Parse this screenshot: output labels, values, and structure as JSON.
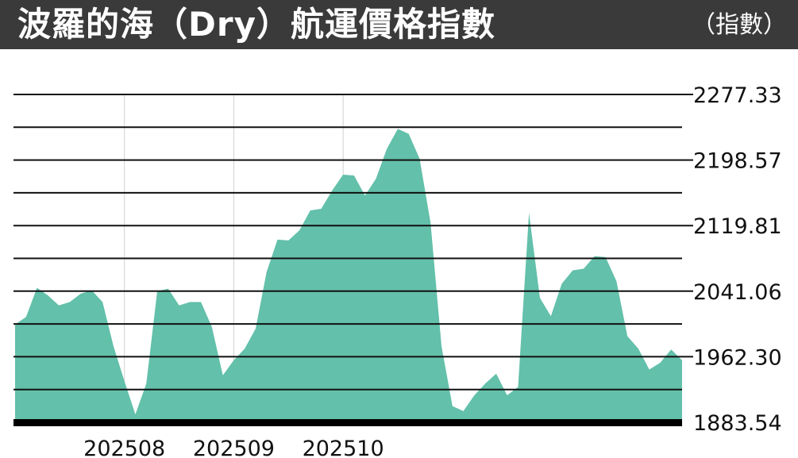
{
  "header": {
    "title": "波羅的海（Dry）航運價格指數",
    "unit": "（指數）"
  },
  "colors": {
    "header_bg": "#3b3a3a",
    "area_fill": "#63c0aa",
    "gridline": "#111111",
    "baseline": "#000000"
  },
  "chart_data": {
    "type": "area",
    "title": "波羅的海（Dry）航運價格指數",
    "unit_label": "（指數）",
    "ylim": [
      1883.54,
      2277.33
    ],
    "y_ticks": [
      "2277.33",
      "2198.57",
      "2119.81",
      "2041.06",
      "1962.30",
      "1883.54"
    ],
    "x_ticks": [
      "202508",
      "202509",
      "202510"
    ],
    "grid": true,
    "y_axis_side": "right",
    "values": [
      2001,
      2010,
      2045,
      2036,
      2024,
      2028,
      2038,
      2042,
      2028,
      1975,
      1933,
      1893,
      1930,
      2041,
      2044,
      2024,
      2028,
      2028,
      1998,
      1940,
      1958,
      1972,
      1996,
      2064,
      2103,
      2102,
      2114,
      2138,
      2140,
      2162,
      2181,
      2180,
      2156,
      2176,
      2212,
      2236,
      2230,
      2200,
      2123,
      1975,
      1903,
      1897,
      1916,
      1930,
      1942,
      1916,
      1926,
      2135,
      2033,
      2011,
      2050,
      2066,
      2068,
      2083,
      2082,
      2053,
      1987,
      1972,
      1947,
      1955,
      1971,
      1958
    ],
    "x_tick_index": [
      10,
      20,
      30
    ]
  }
}
